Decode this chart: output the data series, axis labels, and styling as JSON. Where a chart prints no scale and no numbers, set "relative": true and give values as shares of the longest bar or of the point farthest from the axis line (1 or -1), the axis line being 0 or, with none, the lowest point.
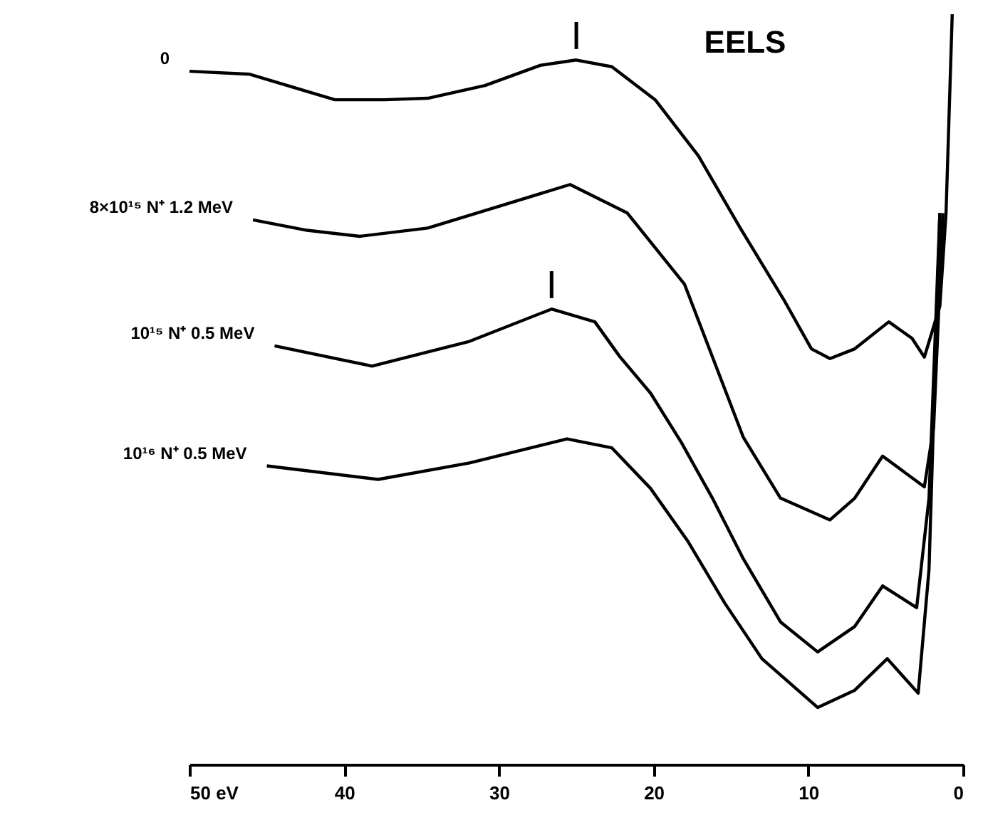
{
  "chart_data": {
    "type": "line",
    "title": "EELS",
    "relative": true,
    "grid": false,
    "legend": false,
    "line_style": "solid",
    "marker": "none",
    "xlim": [
      50,
      0
    ],
    "xticks": [
      {
        "value": 50,
        "label": "50 eV"
      },
      40,
      30,
      20,
      10,
      0
    ],
    "annotations": [
      {
        "text": "|",
        "x": 25.0,
        "y": 0.939
      },
      {
        "text": "|",
        "x": 26.6,
        "y": 0.607
      }
    ],
    "series": [
      {
        "name": "0",
        "color": "#000000",
        "x": [
          50.0,
          46.1,
          40.6,
          37.4,
          34.6,
          30.9,
          27.3,
          25.0,
          22.7,
          19.9,
          17.1,
          14.4,
          11.6,
          9.8,
          8.6,
          7.0,
          4.8,
          3.3,
          2.5,
          1.5,
          1.1,
          0.7
        ],
        "values": [
          0.924,
          0.92,
          0.886,
          0.886,
          0.888,
          0.905,
          0.932,
          0.939,
          0.93,
          0.886,
          0.811,
          0.715,
          0.62,
          0.554,
          0.541,
          0.554,
          0.59,
          0.568,
          0.543,
          0.611,
          0.735,
          1.0
        ]
      },
      {
        "name": "8×10¹⁵ N⁺ 1.2 MeV",
        "color": "#000000",
        "x": [
          45.9,
          42.4,
          39.0,
          34.6,
          30.0,
          25.4,
          21.7,
          18.0,
          14.2,
          11.8,
          8.6,
          7.0,
          5.2,
          2.5,
          1.9,
          1.3
        ],
        "values": [
          0.726,
          0.712,
          0.704,
          0.715,
          0.744,
          0.773,
          0.735,
          0.64,
          0.436,
          0.355,
          0.326,
          0.355,
          0.411,
          0.37,
          0.45,
          0.735
        ]
      },
      {
        "name": "10¹⁵ N⁺ 0.5 MeV",
        "color": "#000000",
        "x": [
          44.5,
          38.2,
          31.9,
          26.6,
          23.8,
          22.2,
          20.2,
          18.2,
          16.2,
          14.2,
          11.8,
          9.4,
          7.0,
          5.2,
          3.0,
          2.2,
          1.5
        ],
        "values": [
          0.558,
          0.531,
          0.564,
          0.607,
          0.59,
          0.544,
          0.495,
          0.429,
          0.355,
          0.274,
          0.19,
          0.15,
          0.184,
          0.238,
          0.209,
          0.355,
          0.735
        ]
      },
      {
        "name": "10¹⁶ N⁺ 0.5 MeV",
        "color": "#000000",
        "x": [
          45.0,
          37.8,
          31.9,
          25.6,
          22.7,
          20.2,
          17.8,
          15.4,
          13.0,
          9.4,
          7.0,
          4.9,
          2.9,
          2.2,
          1.5
        ],
        "values": [
          0.398,
          0.38,
          0.402,
          0.434,
          0.422,
          0.368,
          0.298,
          0.215,
          0.141,
          0.076,
          0.099,
          0.141,
          0.095,
          0.26,
          0.735
        ]
      }
    ]
  }
}
